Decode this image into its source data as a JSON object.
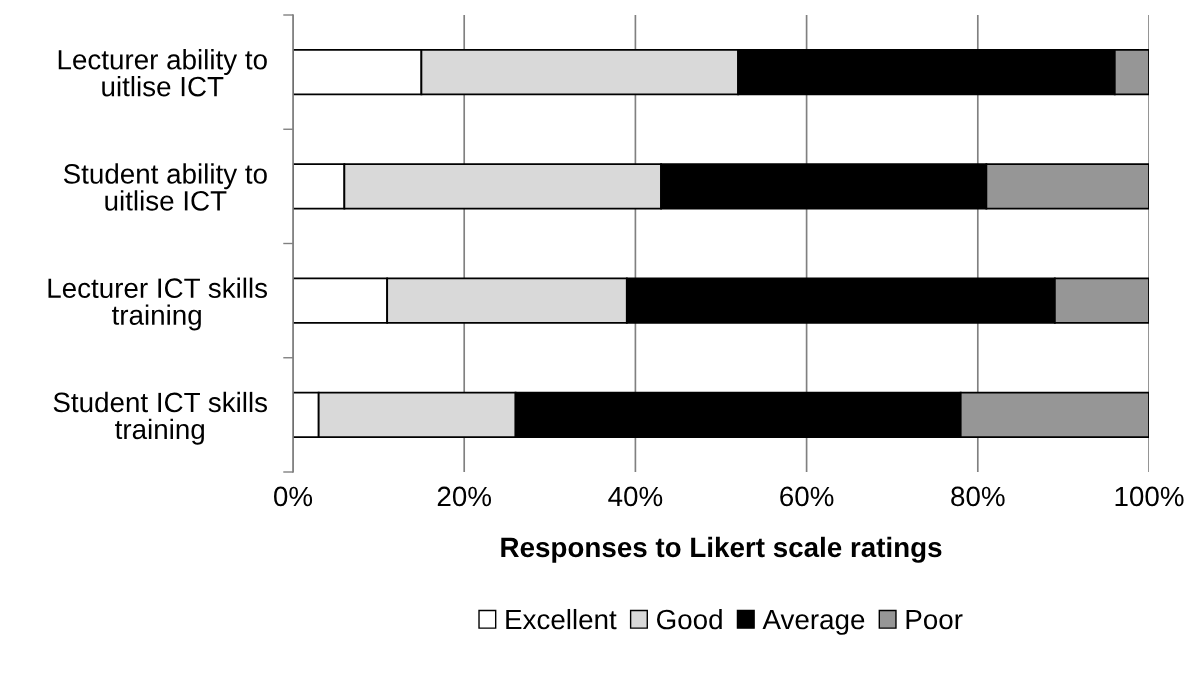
{
  "chart_data": {
    "type": "bar",
    "orientation": "horizontal",
    "stacked": true,
    "categories": [
      "Lecturer ability to\nuitlise ICT",
      "Student ability to\nuitlise ICT",
      "Lecturer ICT skills\ntraining",
      "Student ICT skills\ntraining"
    ],
    "series": [
      {
        "name": "Excellent",
        "color": "#ffffff",
        "values": [
          15,
          6,
          11,
          3
        ]
      },
      {
        "name": "Good",
        "color": "#d9d9d9",
        "values": [
          37,
          37,
          28,
          23
        ]
      },
      {
        "name": "Average",
        "color": "#000000",
        "values": [
          44,
          38,
          50,
          52
        ]
      },
      {
        "name": "Poor",
        "color": "#969696",
        "values": [
          4,
          19,
          11,
          22
        ]
      }
    ],
    "xlabel": "Responses to Likert scale ratings",
    "xlim": [
      0,
      100
    ],
    "xticks": [
      {
        "value": 0,
        "label": "0%"
      },
      {
        "value": 20,
        "label": "20%"
      },
      {
        "value": 40,
        "label": "40%"
      },
      {
        "value": 60,
        "label": "60%"
      },
      {
        "value": 80,
        "label": "80%"
      },
      {
        "value": 100,
        "label": "100%"
      }
    ],
    "grid": "x",
    "legend": "bottom"
  }
}
